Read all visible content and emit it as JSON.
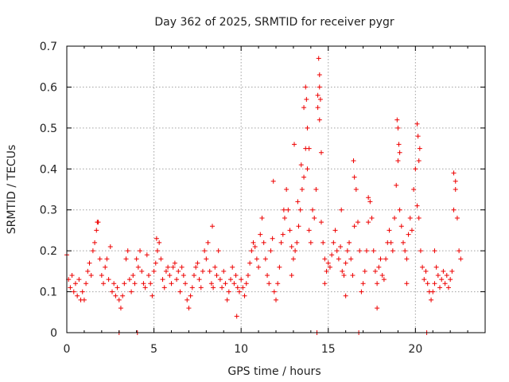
{
  "chart_data": {
    "type": "scatter",
    "title": "Day 362 of 2025, SRMTID for receiver pygr",
    "xlabel": "GPS time / hours",
    "ylabel": "SRMTID / TECUs",
    "xlim": [
      0,
      24
    ],
    "ylim": [
      0,
      0.7
    ],
    "xticks": [
      0,
      5,
      10,
      15,
      20
    ],
    "yticks": [
      0,
      0.1,
      0.2,
      0.3,
      0.4,
      0.5,
      0.6,
      0.7
    ],
    "grid": true,
    "marker": "plus",
    "color": "#ee0000",
    "series": [
      {
        "name": "pygr",
        "points": [
          [
            0.0,
            0.19
          ],
          [
            0.1,
            0.13
          ],
          [
            0.2,
            0.11
          ],
          [
            0.3,
            0.14
          ],
          [
            0.4,
            0.1
          ],
          [
            0.5,
            0.12
          ],
          [
            0.6,
            0.09
          ],
          [
            0.7,
            0.13
          ],
          [
            0.8,
            0.08
          ],
          [
            0.9,
            0.1
          ],
          [
            1.0,
            0.08
          ],
          [
            1.1,
            0.12
          ],
          [
            1.2,
            0.15
          ],
          [
            1.3,
            0.17
          ],
          [
            1.4,
            0.14
          ],
          [
            1.5,
            0.2
          ],
          [
            1.6,
            0.22
          ],
          [
            1.7,
            0.25
          ],
          [
            1.8,
            0.27
          ],
          [
            1.9,
            0.18
          ],
          [
            2.0,
            0.14
          ],
          [
            2.1,
            0.12
          ],
          [
            2.2,
            0.16
          ],
          [
            2.3,
            0.18
          ],
          [
            2.4,
            0.13
          ],
          [
            2.5,
            0.21
          ],
          [
            2.6,
            0.1
          ],
          [
            2.7,
            0.12
          ],
          [
            2.8,
            0.09
          ],
          [
            2.9,
            0.11
          ],
          [
            3.0,
            0.08
          ],
          [
            3.1,
            0.06
          ],
          [
            3.2,
            0.09
          ],
          [
            3.3,
            0.12
          ],
          [
            3.4,
            0.18
          ],
          [
            3.5,
            0.2
          ],
          [
            3.6,
            0.13
          ],
          [
            3.7,
            0.1
          ],
          [
            3.8,
            0.14
          ],
          [
            3.9,
            0.12
          ],
          [
            4.0,
            0.18
          ],
          [
            4.1,
            0.16
          ],
          [
            4.2,
            0.2
          ],
          [
            4.3,
            0.15
          ],
          [
            4.4,
            0.12
          ],
          [
            4.5,
            0.11
          ],
          [
            4.6,
            0.19
          ],
          [
            4.7,
            0.14
          ],
          [
            4.8,
            0.12
          ],
          [
            4.9,
            0.09
          ],
          [
            5.0,
            0.15
          ],
          [
            5.1,
            0.17
          ],
          [
            5.2,
            0.2
          ],
          [
            5.3,
            0.22
          ],
          [
            5.4,
            0.18
          ],
          [
            5.5,
            0.13
          ],
          [
            5.6,
            0.11
          ],
          [
            5.7,
            0.15
          ],
          [
            5.8,
            0.16
          ],
          [
            5.9,
            0.14
          ],
          [
            6.0,
            0.12
          ],
          [
            6.1,
            0.16
          ],
          [
            6.2,
            0.17
          ],
          [
            6.3,
            0.13
          ],
          [
            6.4,
            0.15
          ],
          [
            6.5,
            0.1
          ],
          [
            6.6,
            0.16
          ],
          [
            6.7,
            0.14
          ],
          [
            6.8,
            0.12
          ],
          [
            6.9,
            0.08
          ],
          [
            7.0,
            0.06
          ],
          [
            7.1,
            0.09
          ],
          [
            7.2,
            0.11
          ],
          [
            7.3,
            0.14
          ],
          [
            7.4,
            0.16
          ],
          [
            7.5,
            0.17
          ],
          [
            7.6,
            0.13
          ],
          [
            7.7,
            0.11
          ],
          [
            7.8,
            0.15
          ],
          [
            7.9,
            0.2
          ],
          [
            8.0,
            0.18
          ],
          [
            8.1,
            0.22
          ],
          [
            8.2,
            0.15
          ],
          [
            8.3,
            0.12
          ],
          [
            8.4,
            0.11
          ],
          [
            8.5,
            0.16
          ],
          [
            8.6,
            0.14
          ],
          [
            8.7,
            0.2
          ],
          [
            8.8,
            0.13
          ],
          [
            8.9,
            0.11
          ],
          [
            9.0,
            0.15
          ],
          [
            9.1,
            0.12
          ],
          [
            9.2,
            0.08
          ],
          [
            9.3,
            0.1
          ],
          [
            9.4,
            0.13
          ],
          [
            9.5,
            0.16
          ],
          [
            9.6,
            0.12
          ],
          [
            9.7,
            0.14
          ],
          [
            9.8,
            0.11
          ],
          [
            9.9,
            0.1
          ],
          [
            10.0,
            0.13
          ],
          [
            10.1,
            0.11
          ],
          [
            10.2,
            0.09
          ],
          [
            10.3,
            0.12
          ],
          [
            10.4,
            0.14
          ],
          [
            10.5,
            0.17
          ],
          [
            10.6,
            0.2
          ],
          [
            10.7,
            0.22
          ],
          [
            10.8,
            0.21
          ],
          [
            10.9,
            0.18
          ],
          [
            11.0,
            0.16
          ],
          [
            11.1,
            0.24
          ],
          [
            11.2,
            0.28
          ],
          [
            11.3,
            0.22
          ],
          [
            11.4,
            0.18
          ],
          [
            11.5,
            0.14
          ],
          [
            11.6,
            0.12
          ],
          [
            11.7,
            0.2
          ],
          [
            11.8,
            0.23
          ],
          [
            11.9,
            0.1
          ],
          [
            12.0,
            0.08
          ],
          [
            12.1,
            0.12
          ],
          [
            12.2,
            0.16
          ],
          [
            12.3,
            0.22
          ],
          [
            12.4,
            0.24
          ],
          [
            12.5,
            0.28
          ],
          [
            12.6,
            0.35
          ],
          [
            12.7,
            0.3
          ],
          [
            12.8,
            0.25
          ],
          [
            12.9,
            0.21
          ],
          [
            13.0,
            0.18
          ],
          [
            13.1,
            0.2
          ],
          [
            13.2,
            0.22
          ],
          [
            13.3,
            0.26
          ],
          [
            13.4,
            0.3
          ],
          [
            13.5,
            0.35
          ],
          [
            13.6,
            0.38
          ],
          [
            13.7,
            0.45
          ],
          [
            13.8,
            0.4
          ],
          [
            13.9,
            0.25
          ],
          [
            14.0,
            0.22
          ],
          [
            14.1,
            0.3
          ],
          [
            14.2,
            0.28
          ],
          [
            14.3,
            0.35
          ],
          [
            14.4,
            0.55
          ],
          [
            14.5,
            0.6
          ],
          [
            14.6,
            0.27
          ],
          [
            14.7,
            0.22
          ],
          [
            14.8,
            0.18
          ],
          [
            14.9,
            0.15
          ],
          [
            15.0,
            0.17
          ],
          [
            15.1,
            0.16
          ],
          [
            15.2,
            0.19
          ],
          [
            15.3,
            0.22
          ],
          [
            15.4,
            0.25
          ],
          [
            15.5,
            0.2
          ],
          [
            15.6,
            0.18
          ],
          [
            15.7,
            0.21
          ],
          [
            15.8,
            0.15
          ],
          [
            15.9,
            0.14
          ],
          [
            16.0,
            0.17
          ],
          [
            16.1,
            0.2
          ],
          [
            16.2,
            0.22
          ],
          [
            16.3,
            0.18
          ],
          [
            16.4,
            0.14
          ],
          [
            16.5,
            0.26
          ],
          [
            16.6,
            0.35
          ],
          [
            16.7,
            0.27
          ],
          [
            16.8,
            0.2
          ],
          [
            16.9,
            0.1
          ],
          [
            17.0,
            0.12
          ],
          [
            17.1,
            0.15
          ],
          [
            17.2,
            0.2
          ],
          [
            17.3,
            0.27
          ],
          [
            17.4,
            0.32
          ],
          [
            17.5,
            0.28
          ],
          [
            17.6,
            0.2
          ],
          [
            17.7,
            0.15
          ],
          [
            17.8,
            0.12
          ],
          [
            17.9,
            0.16
          ],
          [
            18.0,
            0.18
          ],
          [
            18.1,
            0.14
          ],
          [
            18.2,
            0.13
          ],
          [
            18.3,
            0.18
          ],
          [
            18.4,
            0.22
          ],
          [
            18.5,
            0.25
          ],
          [
            18.6,
            0.22
          ],
          [
            18.7,
            0.2
          ],
          [
            18.8,
            0.28
          ],
          [
            18.9,
            0.36
          ],
          [
            19.0,
            0.42
          ],
          [
            19.1,
            0.3
          ],
          [
            19.2,
            0.26
          ],
          [
            19.3,
            0.22
          ],
          [
            19.4,
            0.2
          ],
          [
            19.5,
            0.18
          ],
          [
            19.6,
            0.24
          ],
          [
            19.7,
            0.28
          ],
          [
            19.8,
            0.25
          ],
          [
            19.9,
            0.35
          ],
          [
            20.0,
            0.4
          ],
          [
            20.1,
            0.31
          ],
          [
            20.2,
            0.28
          ],
          [
            20.3,
            0.2
          ],
          [
            20.4,
            0.16
          ],
          [
            20.5,
            0.13
          ],
          [
            20.6,
            0.15
          ],
          [
            20.7,
            0.12
          ],
          [
            20.8,
            0.1
          ],
          [
            20.9,
            0.08
          ],
          [
            21.0,
            0.1
          ],
          [
            21.1,
            0.12
          ],
          [
            21.2,
            0.16
          ],
          [
            21.3,
            0.14
          ],
          [
            21.4,
            0.11
          ],
          [
            21.5,
            0.13
          ],
          [
            21.6,
            0.15
          ],
          [
            21.7,
            0.12
          ],
          [
            21.8,
            0.14
          ],
          [
            21.9,
            0.11
          ],
          [
            22.0,
            0.13
          ],
          [
            22.1,
            0.15
          ],
          [
            22.2,
            0.3
          ],
          [
            22.3,
            0.35
          ],
          [
            22.4,
            0.28
          ],
          [
            22.5,
            0.2
          ],
          [
            22.6,
            0.18
          ],
          [
            1.75,
            0.27
          ],
          [
            13.05,
            0.46
          ],
          [
            13.45,
            0.41
          ],
          [
            13.7,
            0.6
          ],
          [
            13.75,
            0.57
          ],
          [
            13.8,
            0.5
          ],
          [
            13.9,
            0.45
          ],
          [
            14.45,
            0.67
          ],
          [
            14.5,
            0.63
          ],
          [
            14.55,
            0.57
          ],
          [
            14.5,
            0.52
          ],
          [
            14.6,
            0.44
          ],
          [
            16.45,
            0.42
          ],
          [
            16.5,
            0.38
          ],
          [
            18.95,
            0.52
          ],
          [
            19.0,
            0.5
          ],
          [
            19.1,
            0.44
          ],
          [
            20.1,
            0.51
          ],
          [
            20.15,
            0.48
          ],
          [
            20.25,
            0.45
          ],
          [
            22.2,
            0.39
          ],
          [
            22.3,
            0.37
          ],
          [
            14.4,
            0.58
          ],
          [
            13.6,
            0.55
          ],
          [
            19.05,
            0.46
          ],
          [
            20.2,
            0.42
          ],
          [
            12.45,
            0.3
          ],
          [
            11.85,
            0.37
          ],
          [
            13.25,
            0.32
          ],
          [
            15.75,
            0.3
          ],
          [
            17.3,
            0.33
          ],
          [
            21.1,
            0.2
          ],
          [
            12.9,
            0.14
          ],
          [
            14.8,
            0.12
          ],
          [
            16.0,
            0.09
          ],
          [
            17.8,
            0.06
          ],
          [
            19.5,
            0.12
          ],
          [
            8.35,
            0.26
          ],
          [
            9.75,
            0.04
          ],
          [
            5.15,
            0.23
          ],
          [
            3.0,
            0.0
          ],
          [
            4.05,
            0.0
          ],
          [
            14.35,
            0.0
          ],
          [
            16.75,
            0.0
          ],
          [
            20.65,
            0.0
          ]
        ]
      }
    ]
  }
}
